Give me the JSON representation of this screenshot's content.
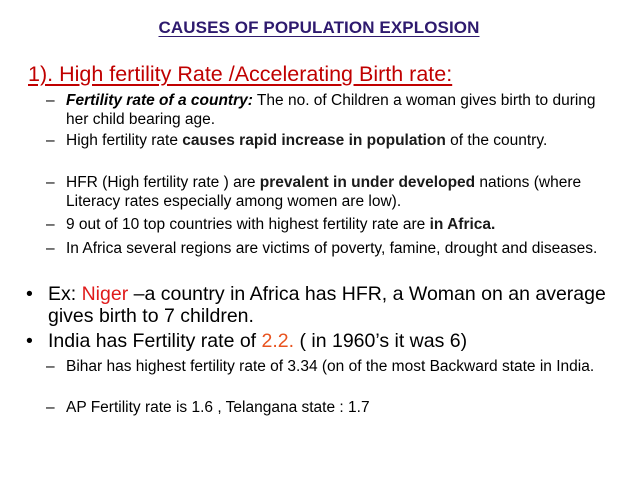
{
  "title": "CAUSES OF POPULATION EXPLOSION",
  "heading": "1). High fertility Rate /Accelerating Birth rate:",
  "dash": "–",
  "bullet": "•",
  "items": {
    "fert_def": {
      "term": "Fertility rate of a country:",
      "text": " The no. of Children a woman gives birth to during her child bearing age."
    },
    "hfr_causes": {
      "pre": "High fertility rate ",
      "bold": "causes rapid increase in population",
      "post": " of the country."
    },
    "hfr_prevalent": {
      "pre": " HFR (High fertility rate ) are ",
      "bold": "prevalent in under developed",
      "post": " nations (where Literacy rates especially among women are low)."
    },
    "top_countries": {
      "pre": " 9 out of 10 top countries with highest fertility rate are ",
      "bold": "in Africa."
    },
    "africa": {
      "text": "In Africa several regions are victims of poverty, famine, drought and diseases."
    },
    "niger": {
      "pre": "Ex: ",
      "red": "Niger",
      "post": " –a country in Africa has HFR, a Woman on an average gives birth to 7 children."
    },
    "india": {
      "pre": "India has Fertility rate of ",
      "highlight": "2.2.",
      "post": " ( in 1960’s it was 6)"
    },
    "bihar": {
      "text": "Bihar has highest fertility rate of 3.34 (on of the most Backward state in India."
    },
    "ap": {
      "text": "AP Fertility rate is 1.6 , Telangana state : 1.7"
    }
  }
}
